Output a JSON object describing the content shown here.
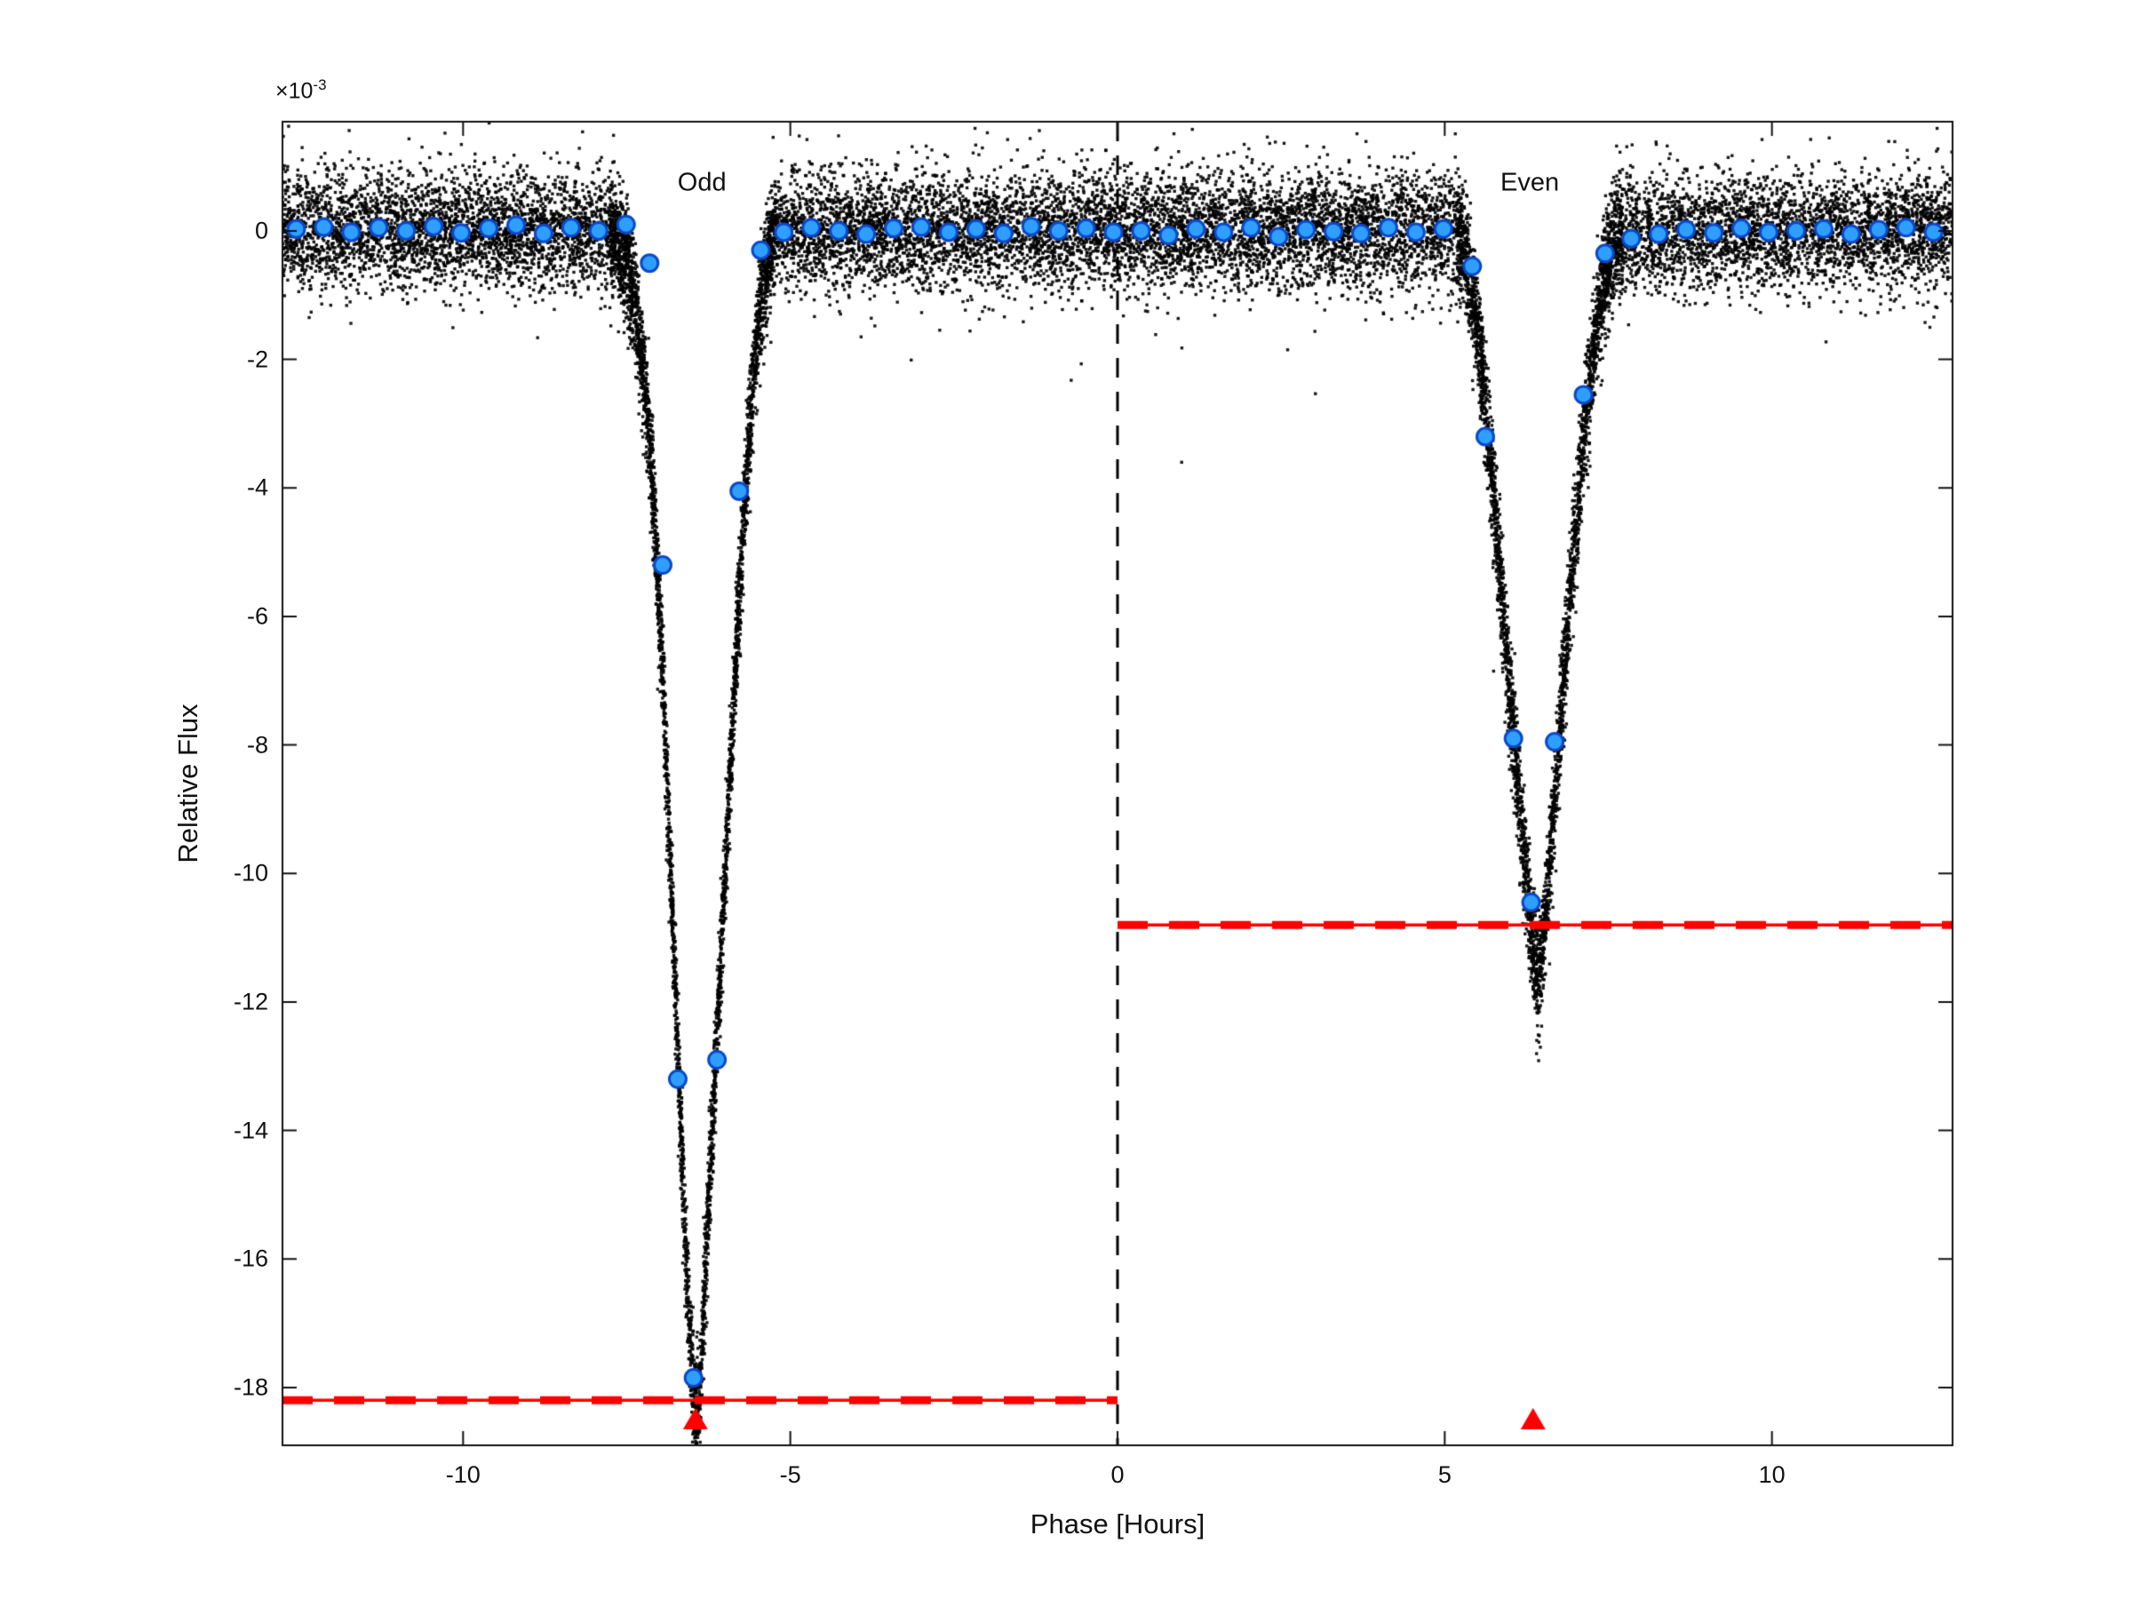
{
  "chart_data": {
    "type": "scatter",
    "title": "",
    "xlabel": "Phase [Hours]",
    "ylabel": "Relative Flux",
    "y_scale_base": "×10",
    "y_scale_exp": "-3",
    "xlim": [
      -12.76,
      12.76
    ],
    "ylim_e3": [
      -18.9,
      1.7
    ],
    "xticks": [
      {
        "value": -10,
        "label": "-10"
      },
      {
        "value": -5,
        "label": "-5"
      },
      {
        "value": 0,
        "label": "0"
      },
      {
        "value": 5,
        "label": "5"
      },
      {
        "value": 10,
        "label": "10"
      }
    ],
    "yticks": [
      {
        "value_e3": 0,
        "label": "0"
      },
      {
        "value_e3": -2,
        "label": "-2"
      },
      {
        "value_e3": -4,
        "label": "-4"
      },
      {
        "value_e3": -6,
        "label": "-6"
      },
      {
        "value_e3": -8,
        "label": "-8"
      },
      {
        "value_e3": -10,
        "label": "-10"
      },
      {
        "value_e3": -12,
        "label": "-12"
      },
      {
        "value_e3": -14,
        "label": "-14"
      },
      {
        "value_e3": -16,
        "label": "-16"
      },
      {
        "value_e3": -18,
        "label": "-18"
      }
    ],
    "annotations": [
      {
        "text": "Odd",
        "x": -6.35,
        "y_e3": 0.75
      },
      {
        "text": "Even",
        "x": 6.3,
        "y_e3": 0.75
      }
    ],
    "vline_x": 0,
    "depth_lines_e3": [
      {
        "x0": -12.76,
        "x1": 0,
        "y_e3": -18.2
      },
      {
        "x0": 0,
        "x1": 12.76,
        "y_e3": -10.8
      }
    ],
    "transit_markers": [
      {
        "x": -6.45,
        "y_e3": -18.5
      },
      {
        "x": 6.35,
        "y_e3": -18.5
      }
    ],
    "binned_points_e3": [
      [
        -12.55,
        0.03
      ],
      [
        -12.13,
        0.06
      ],
      [
        -11.71,
        -0.02
      ],
      [
        -11.29,
        0.05
      ],
      [
        -10.87,
        0.0
      ],
      [
        -10.45,
        0.07
      ],
      [
        -10.03,
        -0.03
      ],
      [
        -9.61,
        0.04
      ],
      [
        -9.19,
        0.09
      ],
      [
        -8.77,
        -0.04
      ],
      [
        -8.35,
        0.05
      ],
      [
        -7.93,
        0.0
      ],
      [
        -7.51,
        0.1
      ],
      [
        -7.15,
        -0.5
      ],
      [
        -6.95,
        -5.2
      ],
      [
        -6.72,
        -13.2
      ],
      [
        -6.48,
        -17.85
      ],
      [
        -6.12,
        -12.9
      ],
      [
        -5.78,
        -4.05
      ],
      [
        -5.45,
        -0.3
      ],
      [
        -5.1,
        -0.02
      ],
      [
        -4.68,
        0.05
      ],
      [
        -4.26,
        0.0
      ],
      [
        -3.84,
        -0.05
      ],
      [
        -3.42,
        0.04
      ],
      [
        -3.0,
        0.06
      ],
      [
        -2.58,
        -0.02
      ],
      [
        -2.16,
        0.03
      ],
      [
        -1.74,
        -0.04
      ],
      [
        -1.32,
        0.07
      ],
      [
        -0.9,
        0.0
      ],
      [
        -0.48,
        0.04
      ],
      [
        -0.06,
        -0.02
      ],
      [
        0.36,
        0.0
      ],
      [
        0.78,
        -0.07
      ],
      [
        1.2,
        0.03
      ],
      [
        1.62,
        -0.02
      ],
      [
        2.04,
        0.05
      ],
      [
        2.46,
        -0.09
      ],
      [
        2.88,
        0.02
      ],
      [
        3.3,
        -0.01
      ],
      [
        3.72,
        -0.04
      ],
      [
        4.14,
        0.05
      ],
      [
        4.56,
        -0.02
      ],
      [
        4.98,
        0.03
      ],
      [
        5.42,
        -0.55
      ],
      [
        5.62,
        -3.2
      ],
      [
        6.05,
        -7.9
      ],
      [
        6.32,
        -10.45
      ],
      [
        6.68,
        -7.95
      ],
      [
        7.12,
        -2.55
      ],
      [
        7.45,
        -0.35
      ],
      [
        7.85,
        -0.12
      ],
      [
        8.27,
        -0.05
      ],
      [
        8.69,
        0.02
      ],
      [
        9.11,
        -0.03
      ],
      [
        9.53,
        0.04
      ],
      [
        9.95,
        -0.02
      ],
      [
        10.37,
        0.0
      ],
      [
        10.79,
        0.03
      ],
      [
        11.21,
        -0.05
      ],
      [
        11.63,
        0.02
      ],
      [
        12.05,
        0.05
      ],
      [
        12.47,
        -0.02
      ]
    ],
    "isolated_points_e3": [
      [
        0.98,
        -3.6
      ],
      [
        2.6,
        -1.85
      ]
    ],
    "scatter_model": {
      "seed": 7,
      "n_background": 17000,
      "noise_sigma_e3": 0.45,
      "outlier_fraction": 0.004,
      "outlier_sigma_e3": 1.3,
      "extra_transit_points": [
        {
          "x0": -7.75,
          "x1": -5.22,
          "n": 2400
        },
        {
          "x0": 5.18,
          "x1": 7.72,
          "n": 2000
        }
      ],
      "odd_shape_e3": [
        [
          -7.75,
          0
        ],
        [
          -7.55,
          -0.35
        ],
        [
          -7.38,
          -1.1
        ],
        [
          -7.22,
          -2.4
        ],
        [
          -7.08,
          -4.3
        ],
        [
          -6.95,
          -6.9
        ],
        [
          -6.82,
          -10.2
        ],
        [
          -6.68,
          -13.8
        ],
        [
          -6.56,
          -16.8
        ],
        [
          -6.48,
          -18.2
        ],
        [
          -6.43,
          -18.6
        ],
        [
          -6.37,
          -17.8
        ],
        [
          -6.27,
          -15.6
        ],
        [
          -6.14,
          -12.9
        ],
        [
          -6.0,
          -10.1
        ],
        [
          -5.86,
          -7.2
        ],
        [
          -5.72,
          -4.6
        ],
        [
          -5.58,
          -2.5
        ],
        [
          -5.45,
          -1.1
        ],
        [
          -5.33,
          -0.35
        ],
        [
          -5.22,
          0
        ]
      ],
      "even_shape_e3": [
        [
          5.18,
          0
        ],
        [
          5.33,
          -0.4
        ],
        [
          5.48,
          -1.3
        ],
        [
          5.62,
          -2.7
        ],
        [
          5.76,
          -4.3
        ],
        [
          5.9,
          -6.0
        ],
        [
          6.04,
          -7.7
        ],
        [
          6.17,
          -9.2
        ],
        [
          6.28,
          -10.4
        ],
        [
          6.37,
          -11.3
        ],
        [
          6.44,
          -11.6
        ],
        [
          6.52,
          -10.9
        ],
        [
          6.63,
          -9.5
        ],
        [
          6.76,
          -7.7
        ],
        [
          6.9,
          -5.9
        ],
        [
          7.04,
          -4.2
        ],
        [
          7.18,
          -2.7
        ],
        [
          7.32,
          -1.5
        ],
        [
          7.46,
          -0.65
        ],
        [
          7.6,
          -0.2
        ],
        [
          7.72,
          0
        ]
      ]
    },
    "colors": {
      "scatter": "#000000",
      "binned_fill": "#2e9fff",
      "binned_edge": "#0b48c8",
      "depth_line": "#ff0000",
      "marker_triangle": "#ff0000",
      "vline": "#000000",
      "axis": "#111111"
    }
  }
}
